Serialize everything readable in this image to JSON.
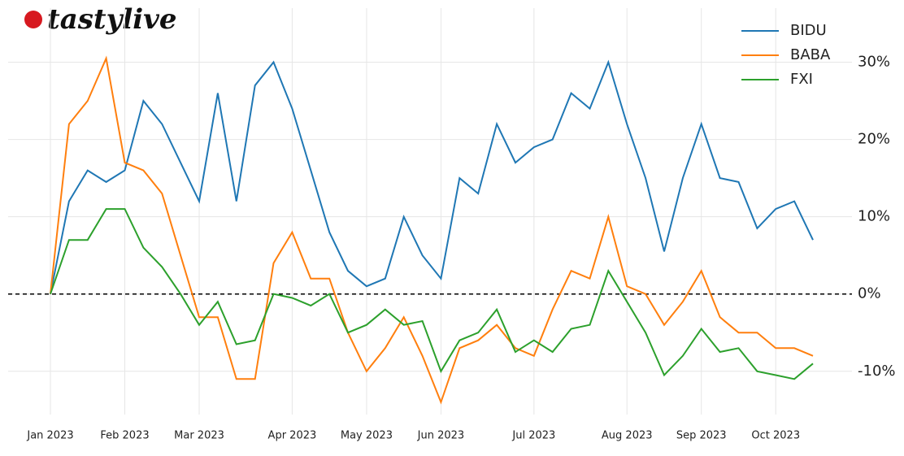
{
  "logo": "tastylive",
  "chart_data": {
    "type": "line",
    "categories": [
      "Jan 2023",
      null,
      null,
      null,
      "Feb 2023",
      null,
      null,
      null,
      "Mar 2023",
      null,
      null,
      null,
      null,
      "Apr 2023",
      null,
      null,
      null,
      "May 2023",
      null,
      null,
      null,
      "Jun 2023",
      null,
      null,
      null,
      null,
      "Jul 2023",
      null,
      null,
      null,
      null,
      "Aug 2023",
      null,
      null,
      null,
      "Sep 2023",
      null,
      null,
      null,
      "Oct 2023",
      null,
      null
    ],
    "series": [
      {
        "name": "BIDU",
        "color": "#1f77b4",
        "values": [
          0,
          12,
          16,
          14.5,
          16,
          25,
          22,
          17,
          12,
          26,
          12,
          27,
          30,
          24,
          16,
          8,
          3,
          1,
          2,
          10,
          5,
          2,
          15,
          13,
          22,
          17,
          19,
          20,
          26,
          24,
          30,
          22,
          15,
          5.5,
          15,
          22,
          15,
          14.5,
          8.5,
          11,
          12,
          7
        ]
      },
      {
        "name": "BABA",
        "color": "#ff7f0e",
        "values": [
          0,
          22,
          25,
          30.5,
          17,
          16,
          13,
          5,
          -3,
          -3,
          -11,
          -11,
          4,
          8,
          2,
          2,
          -5,
          -10,
          -7,
          -3,
          -8,
          -14,
          -7,
          -6,
          -4,
          -7,
          -8,
          -2,
          3,
          2,
          10,
          1,
          0,
          -4,
          -1,
          3,
          -3,
          -5,
          -5,
          -7,
          -7,
          -8
        ]
      },
      {
        "name": "FXI",
        "color": "#2ca02c",
        "values": [
          0,
          7,
          7,
          11,
          11,
          6,
          3.5,
          0,
          -4,
          -1,
          -6.5,
          -6,
          0,
          -0.5,
          -1.5,
          0,
          -5,
          -4,
          -2,
          -4,
          -3.5,
          -10,
          -6,
          -5,
          -2,
          -7.5,
          -6,
          -7.5,
          -4.5,
          -4,
          3,
          -1,
          -5,
          -10.5,
          -8,
          -4.5,
          -7.5,
          -7,
          -10,
          -10.5,
          -11,
          -9
        ]
      }
    ],
    "ylim": [
      -15.6,
      37
    ],
    "yticks": [
      {
        "value": -10,
        "label": "-10%"
      },
      {
        "value": 0,
        "label": "0%"
      },
      {
        "value": 10,
        "label": "10%"
      },
      {
        "value": 20,
        "label": "20%"
      },
      {
        "value": 30,
        "label": "30%"
      }
    ],
    "grid": true,
    "legend": "top-right",
    "zero_line": true
  }
}
